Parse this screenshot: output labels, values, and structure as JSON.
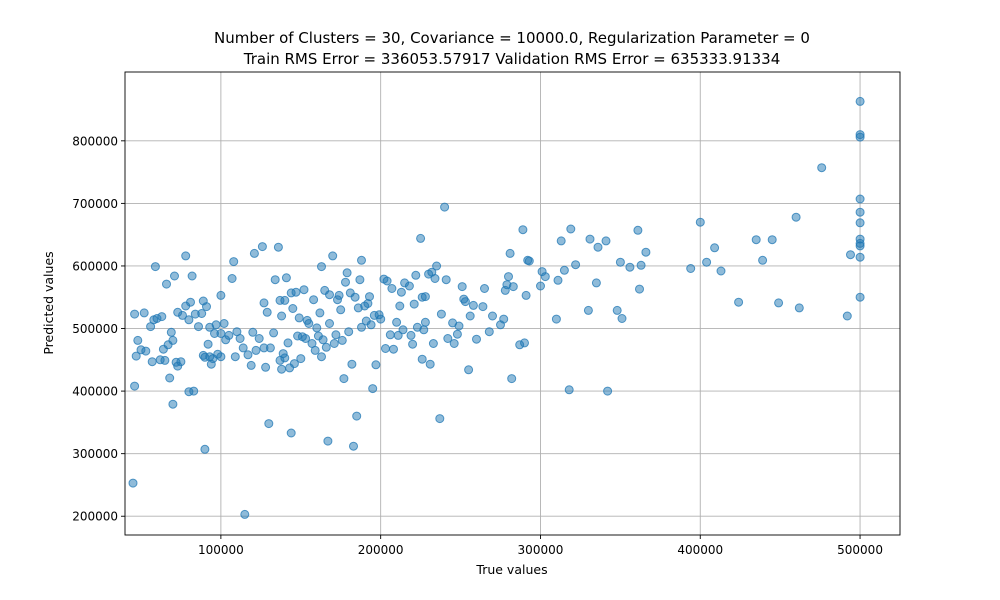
{
  "chart_data": {
    "type": "scatter",
    "title_lines": [
      "Number of Clusters = 30, Covariance = 10000.0, Regularization Parameter = 0",
      "Train RMS Error = 336053.57917 Validation RMS Error = 635333.91334"
    ],
    "xlabel": "True values",
    "ylabel": "Predicted values",
    "xlim": [
      40000,
      525000
    ],
    "ylim": [
      170000,
      910000
    ],
    "x_ticks": [
      100000,
      200000,
      300000,
      400000,
      500000
    ],
    "y_ticks": [
      200000,
      300000,
      400000,
      500000,
      600000,
      700000,
      800000
    ],
    "grid": true,
    "color": "#1f77b4",
    "points": [
      [
        45000,
        253000
      ],
      [
        46000,
        408000
      ],
      [
        46000,
        523000
      ],
      [
        47000,
        456000
      ],
      [
        48000,
        481000
      ],
      [
        50000,
        466000
      ],
      [
        52000,
        525000
      ],
      [
        53000,
        464000
      ],
      [
        56000,
        503000
      ],
      [
        57000,
        447000
      ],
      [
        58000,
        514000
      ],
      [
        59000,
        599000
      ],
      [
        60000,
        516000
      ],
      [
        62000,
        450000
      ],
      [
        63000,
        519000
      ],
      [
        64000,
        467000
      ],
      [
        65000,
        449000
      ],
      [
        66000,
        571000
      ],
      [
        67000,
        474000
      ],
      [
        68000,
        421000
      ],
      [
        69000,
        494000
      ],
      [
        70000,
        379000
      ],
      [
        70000,
        481000
      ],
      [
        71000,
        584000
      ],
      [
        72000,
        446000
      ],
      [
        73000,
        440000
      ],
      [
        73000,
        526000
      ],
      [
        75000,
        447000
      ],
      [
        76000,
        521000
      ],
      [
        78000,
        536000
      ],
      [
        78000,
        616000
      ],
      [
        80000,
        514000
      ],
      [
        80000,
        399000
      ],
      [
        81000,
        542000
      ],
      [
        82000,
        584000
      ],
      [
        83000,
        400000
      ],
      [
        84000,
        523000
      ],
      [
        86000,
        503000
      ],
      [
        88000,
        524000
      ],
      [
        89000,
        457000
      ],
      [
        89000,
        544000
      ],
      [
        90000,
        454000
      ],
      [
        90000,
        307000
      ],
      [
        91000,
        535000
      ],
      [
        92000,
        475000
      ],
      [
        93000,
        502000
      ],
      [
        93000,
        455000
      ],
      [
        94000,
        443000
      ],
      [
        95000,
        452000
      ],
      [
        96000,
        492000
      ],
      [
        97000,
        506000
      ],
      [
        98000,
        459000
      ],
      [
        100000,
        553000
      ],
      [
        100000,
        492000
      ],
      [
        100000,
        455000
      ],
      [
        102000,
        508000
      ],
      [
        103000,
        482000
      ],
      [
        105000,
        489000
      ],
      [
        107000,
        580000
      ],
      [
        108000,
        607000
      ],
      [
        109000,
        455000
      ],
      [
        110000,
        495000
      ],
      [
        112000,
        484000
      ],
      [
        114000,
        469000
      ],
      [
        115000,
        203000
      ],
      [
        117000,
        458000
      ],
      [
        119000,
        441000
      ],
      [
        120000,
        494000
      ],
      [
        121000,
        620000
      ],
      [
        122000,
        465000
      ],
      [
        124000,
        484000
      ],
      [
        126000,
        631000
      ],
      [
        127000,
        469000
      ],
      [
        127000,
        541000
      ],
      [
        128000,
        438000
      ],
      [
        129000,
        526000
      ],
      [
        130000,
        348000
      ],
      [
        131000,
        469000
      ],
      [
        133000,
        493000
      ],
      [
        134000,
        578000
      ],
      [
        136000,
        630000
      ],
      [
        137000,
        449000
      ],
      [
        137000,
        545000
      ],
      [
        138000,
        435000
      ],
      [
        138000,
        520000
      ],
      [
        139000,
        460000
      ],
      [
        140000,
        545000
      ],
      [
        140000,
        453000
      ],
      [
        141000,
        581000
      ],
      [
        142000,
        477000
      ],
      [
        143000,
        437000
      ],
      [
        144000,
        333000
      ],
      [
        144000,
        557000
      ],
      [
        145000,
        532000
      ],
      [
        146000,
        444000
      ],
      [
        147000,
        558000
      ],
      [
        148000,
        488000
      ],
      [
        149000,
        517000
      ],
      [
        150000,
        452000
      ],
      [
        151000,
        487000
      ],
      [
        152000,
        562000
      ],
      [
        153000,
        484000
      ],
      [
        154000,
        513000
      ],
      [
        155000,
        508000
      ],
      [
        157000,
        476000
      ],
      [
        158000,
        546000
      ],
      [
        159000,
        465000
      ],
      [
        160000,
        501000
      ],
      [
        161000,
        488000
      ],
      [
        162000,
        525000
      ],
      [
        163000,
        455000
      ],
      [
        163000,
        599000
      ],
      [
        164000,
        482000
      ],
      [
        165000,
        561000
      ],
      [
        166000,
        470000
      ],
      [
        167000,
        320000
      ],
      [
        168000,
        508000
      ],
      [
        168000,
        554000
      ],
      [
        170000,
        616000
      ],
      [
        171000,
        476000
      ],
      [
        172000,
        490000
      ],
      [
        173000,
        546000
      ],
      [
        174000,
        553000
      ],
      [
        175000,
        530000
      ],
      [
        176000,
        481000
      ],
      [
        177000,
        420000
      ],
      [
        178000,
        574000
      ],
      [
        179000,
        589000
      ],
      [
        180000,
        495000
      ],
      [
        181000,
        557000
      ],
      [
        182000,
        443000
      ],
      [
        183000,
        312000
      ],
      [
        184000,
        550000
      ],
      [
        185000,
        360000
      ],
      [
        186000,
        533000
      ],
      [
        187000,
        578000
      ],
      [
        188000,
        609000
      ],
      [
        188000,
        502000
      ],
      [
        190000,
        536000
      ],
      [
        191000,
        512000
      ],
      [
        192000,
        540000
      ],
      [
        193000,
        551000
      ],
      [
        194000,
        506000
      ],
      [
        195000,
        404000
      ],
      [
        196000,
        521000
      ],
      [
        197000,
        442000
      ],
      [
        199000,
        522000
      ],
      [
        200000,
        515000
      ],
      [
        202000,
        579000
      ],
      [
        203000,
        468000
      ],
      [
        204000,
        576000
      ],
      [
        206000,
        490000
      ],
      [
        207000,
        564000
      ],
      [
        208000,
        467000
      ],
      [
        210000,
        510000
      ],
      [
        211000,
        489000
      ],
      [
        212000,
        536000
      ],
      [
        213000,
        558000
      ],
      [
        214000,
        498000
      ],
      [
        215000,
        573000
      ],
      [
        218000,
        568000
      ],
      [
        219000,
        489000
      ],
      [
        220000,
        475000
      ],
      [
        221000,
        539000
      ],
      [
        222000,
        585000
      ],
      [
        223000,
        502000
      ],
      [
        225000,
        644000
      ],
      [
        226000,
        550000
      ],
      [
        226000,
        451000
      ],
      [
        227000,
        498000
      ],
      [
        228000,
        510000
      ],
      [
        228000,
        551000
      ],
      [
        230000,
        587000
      ],
      [
        231000,
        443000
      ],
      [
        232000,
        590000
      ],
      [
        233000,
        476000
      ],
      [
        234000,
        580000
      ],
      [
        235000,
        600000
      ],
      [
        237000,
        356000
      ],
      [
        238000,
        523000
      ],
      [
        240000,
        694000
      ],
      [
        241000,
        578000
      ],
      [
        242000,
        484000
      ],
      [
        245000,
        509000
      ],
      [
        246000,
        476000
      ],
      [
        248000,
        491000
      ],
      [
        249000,
        504000
      ],
      [
        251000,
        567000
      ],
      [
        252000,
        547000
      ],
      [
        253000,
        543000
      ],
      [
        255000,
        434000
      ],
      [
        256000,
        520000
      ],
      [
        258000,
        537000
      ],
      [
        260000,
        483000
      ],
      [
        264000,
        535000
      ],
      [
        265000,
        564000
      ],
      [
        268000,
        495000
      ],
      [
        270000,
        520000
      ],
      [
        275000,
        506000
      ],
      [
        277000,
        515000
      ],
      [
        278000,
        561000
      ],
      [
        279000,
        570000
      ],
      [
        280000,
        583000
      ],
      [
        281000,
        620000
      ],
      [
        282000,
        420000
      ],
      [
        283000,
        567000
      ],
      [
        287000,
        474000
      ],
      [
        289000,
        658000
      ],
      [
        290000,
        477000
      ],
      [
        291000,
        553000
      ],
      [
        292000,
        609000
      ],
      [
        293000,
        608000
      ],
      [
        300000,
        568000
      ],
      [
        301000,
        591000
      ],
      [
        303000,
        583000
      ],
      [
        310000,
        515000
      ],
      [
        311000,
        577000
      ],
      [
        313000,
        640000
      ],
      [
        315000,
        593000
      ],
      [
        318000,
        402000
      ],
      [
        319000,
        659000
      ],
      [
        322000,
        602000
      ],
      [
        330000,
        529000
      ],
      [
        331000,
        643000
      ],
      [
        335000,
        573000
      ],
      [
        336000,
        630000
      ],
      [
        341000,
        640000
      ],
      [
        342000,
        400000
      ],
      [
        348000,
        529000
      ],
      [
        350000,
        606000
      ],
      [
        351000,
        516000
      ],
      [
        356000,
        598000
      ],
      [
        361000,
        657000
      ],
      [
        362000,
        563000
      ],
      [
        363000,
        601000
      ],
      [
        366000,
        622000
      ],
      [
        394000,
        596000
      ],
      [
        400000,
        670000
      ],
      [
        404000,
        606000
      ],
      [
        409000,
        629000
      ],
      [
        413000,
        592000
      ],
      [
        424000,
        542000
      ],
      [
        435000,
        642000
      ],
      [
        439000,
        609000
      ],
      [
        445000,
        642000
      ],
      [
        449000,
        541000
      ],
      [
        460000,
        678000
      ],
      [
        462000,
        533000
      ],
      [
        476000,
        757000
      ],
      [
        492000,
        520000
      ],
      [
        494000,
        618000
      ],
      [
        500000,
        863000
      ],
      [
        500000,
        810000
      ],
      [
        500000,
        806000
      ],
      [
        500000,
        707000
      ],
      [
        500000,
        686000
      ],
      [
        500000,
        669000
      ],
      [
        500000,
        643000
      ],
      [
        500000,
        636000
      ],
      [
        500000,
        632000
      ],
      [
        500000,
        614000
      ],
      [
        500000,
        550000
      ]
    ]
  }
}
